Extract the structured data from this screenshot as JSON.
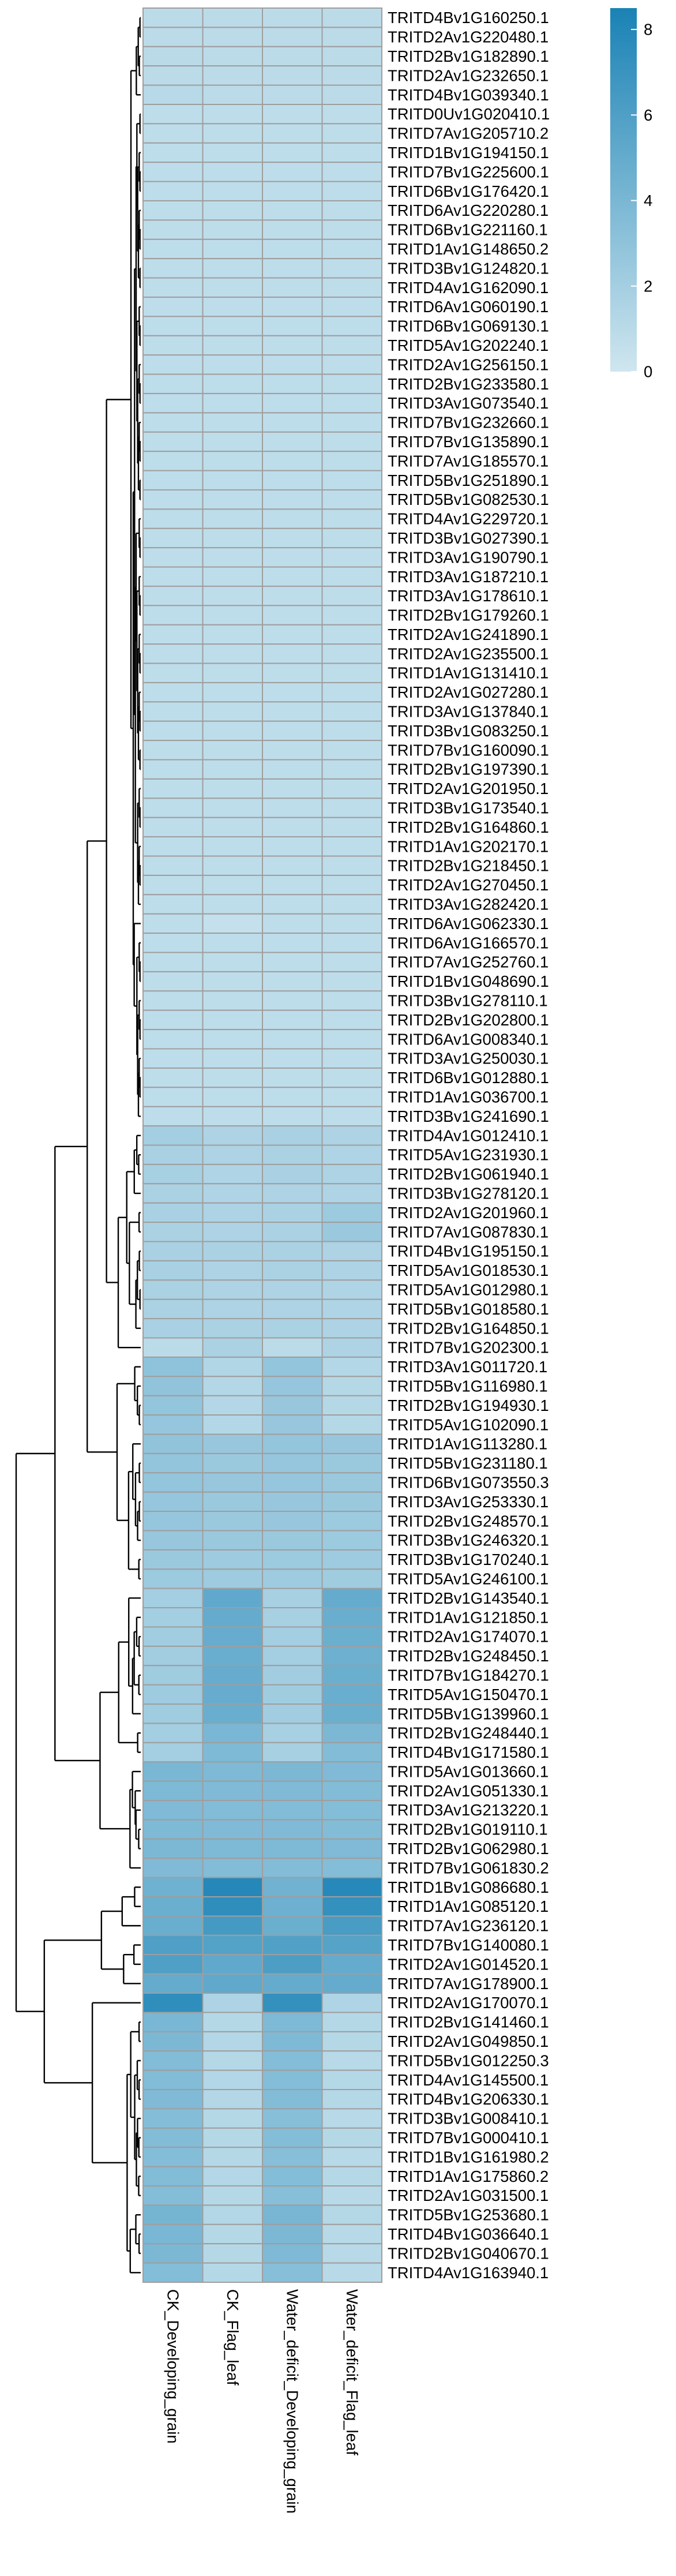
{
  "chart_data": {
    "type": "heatmap",
    "columns": [
      "CK_Developing_grain",
      "CK_Flag_leaf",
      "Water_deficit_Developing_grain",
      "Water_deficit_Flag_leaf"
    ],
    "rows": [
      "TRITD4Bv1G160250.1",
      "TRITD2Av1G220480.1",
      "TRITD2Bv1G182890.1",
      "TRITD2Av1G232650.1",
      "TRITD4Bv1G039340.1",
      "TRITD0Uv1G020410.1",
      "TRITD7Av1G205710.2",
      "TRITD1Bv1G194150.1",
      "TRITD7Bv1G225600.1",
      "TRITD6Bv1G176420.1",
      "TRITD6Av1G220280.1",
      "TRITD6Bv1G221160.1",
      "TRITD1Av1G148650.2",
      "TRITD3Bv1G124820.1",
      "TRITD4Av1G162090.1",
      "TRITD6Av1G060190.1",
      "TRITD6Bv1G069130.1",
      "TRITD5Av1G202240.1",
      "TRITD2Av1G256150.1",
      "TRITD2Bv1G233580.1",
      "TRITD3Av1G073540.1",
      "TRITD7Bv1G232660.1",
      "TRITD7Bv1G135890.1",
      "TRITD7Av1G185570.1",
      "TRITD5Bv1G251890.1",
      "TRITD5Bv1G082530.1",
      "TRITD4Av1G229720.1",
      "TRITD3Bv1G027390.1",
      "TRITD3Av1G190790.1",
      "TRITD3Av1G187210.1",
      "TRITD3Av1G178610.1",
      "TRITD2Bv1G179260.1",
      "TRITD2Av1G241890.1",
      "TRITD2Av1G235500.1",
      "TRITD1Av1G131410.1",
      "TRITD2Av1G027280.1",
      "TRITD3Av1G137840.1",
      "TRITD3Bv1G083250.1",
      "TRITD7Bv1G160090.1",
      "TRITD2Bv1G197390.1",
      "TRITD2Av1G201950.1",
      "TRITD3Bv1G173540.1",
      "TRITD2Bv1G164860.1",
      "TRITD1Av1G202170.1",
      "TRITD2Bv1G218450.1",
      "TRITD2Av1G270450.1",
      "TRITD3Av1G282420.1",
      "TRITD6Av1G062330.1",
      "TRITD6Av1G166570.1",
      "TRITD7Av1G252760.1",
      "TRITD1Bv1G048690.1",
      "TRITD3Bv1G278110.1",
      "TRITD2Bv1G202800.1",
      "TRITD6Av1G008340.1",
      "TRITD3Av1G250030.1",
      "TRITD6Bv1G012880.1",
      "TRITD1Av1G036700.1",
      "TRITD3Bv1G241690.1",
      "TRITD4Av1G012410.1",
      "TRITD5Av1G231930.1",
      "TRITD2Bv1G061940.1",
      "TRITD3Bv1G278120.1",
      "TRITD2Av1G201960.1",
      "TRITD7Av1G087830.1",
      "TRITD4Bv1G195150.1",
      "TRITD5Av1G018530.1",
      "TRITD5Av1G012980.1",
      "TRITD5Bv1G018580.1",
      "TRITD2Bv1G164850.1",
      "TRITD7Bv1G202300.1",
      "TRITD3Av1G011720.1",
      "TRITD5Bv1G116980.1",
      "TRITD2Bv1G194930.1",
      "TRITD5Av1G102090.1",
      "TRITD1Av1G113280.1",
      "TRITD5Bv1G231180.1",
      "TRITD6Bv1G073550.3",
      "TRITD3Av1G253330.1",
      "TRITD2Bv1G248570.1",
      "TRITD3Bv1G246320.1",
      "TRITD3Bv1G170240.1",
      "TRITD5Av1G246100.1",
      "TRITD2Bv1G143540.1",
      "TRITD1Av1G121850.1",
      "TRITD2Av1G174070.1",
      "TRITD2Bv1G248450.1",
      "TRITD7Bv1G184270.1",
      "TRITD5Av1G150470.1",
      "TRITD5Bv1G139960.1",
      "TRITD2Bv1G248440.1",
      "TRITD4Bv1G171580.1",
      "TRITD5Av1G013660.1",
      "TRITD2Av1G051330.1",
      "TRITD3Av1G213220.1",
      "TRITD2Bv1G019110.1",
      "TRITD2Bv1G062980.1",
      "TRITD7Bv1G061830.2",
      "TRITD1Bv1G086680.1",
      "TRITD1Av1G085120.1",
      "TRITD7Av1G236120.1",
      "TRITD7Bv1G140080.1",
      "TRITD2Av1G014520.1",
      "TRITD7Av1G178900.1",
      "TRITD2Av1G170070.1",
      "TRITD2Bv1G141460.1",
      "TRITD2Av1G049850.1",
      "TRITD5Bv1G012250.3",
      "TRITD4Av1G145500.1",
      "TRITD4Bv1G206330.1",
      "TRITD3Bv1G008410.1",
      "TRITD7Bv1G000410.1",
      "TRITD1Bv1G161980.2",
      "TRITD1Av1G175860.2",
      "TRITD2Av1G031500.1",
      "TRITD5Bv1G253680.1",
      "TRITD4Bv1G036640.1",
      "TRITD2Bv1G040670.1",
      "TRITD4Av1G163940.1"
    ],
    "values": [
      [
        0.9,
        0.9,
        0.9,
        0.9
      ],
      [
        0.9,
        0.9,
        0.9,
        0.9
      ],
      [
        1.0,
        0.9,
        0.9,
        0.9
      ],
      [
        0.9,
        0.9,
        0.9,
        0.9
      ],
      [
        1.1,
        0.9,
        0.9,
        0.9
      ],
      [
        0.8,
        0.8,
        0.8,
        0.8
      ],
      [
        0.8,
        0.8,
        0.8,
        0.8
      ],
      [
        0.8,
        0.8,
        0.8,
        0.8
      ],
      [
        0.8,
        0.8,
        0.8,
        0.8
      ],
      [
        0.8,
        0.8,
        0.8,
        0.8
      ],
      [
        0.8,
        0.8,
        0.8,
        0.8
      ],
      [
        0.8,
        0.8,
        0.8,
        0.8
      ],
      [
        0.8,
        0.8,
        0.8,
        0.8
      ],
      [
        0.8,
        0.8,
        0.8,
        0.8
      ],
      [
        0.8,
        0.8,
        0.8,
        0.8
      ],
      [
        0.8,
        0.8,
        0.8,
        0.8
      ],
      [
        0.8,
        0.8,
        0.8,
        0.8
      ],
      [
        0.8,
        0.8,
        0.8,
        0.8
      ],
      [
        0.8,
        0.8,
        0.8,
        0.8
      ],
      [
        0.8,
        0.8,
        0.8,
        0.8
      ],
      [
        0.8,
        0.8,
        0.8,
        0.8
      ],
      [
        0.8,
        0.8,
        0.8,
        0.8
      ],
      [
        0.8,
        0.8,
        0.8,
        0.8
      ],
      [
        0.8,
        0.8,
        0.8,
        0.8
      ],
      [
        0.8,
        0.8,
        0.8,
        0.8
      ],
      [
        0.8,
        0.8,
        0.8,
        0.8
      ],
      [
        0.8,
        0.8,
        0.8,
        0.8
      ],
      [
        0.8,
        0.8,
        0.8,
        0.8
      ],
      [
        0.8,
        0.8,
        0.8,
        0.8
      ],
      [
        0.8,
        0.8,
        0.8,
        0.8
      ],
      [
        0.8,
        0.8,
        0.8,
        0.8
      ],
      [
        0.8,
        0.8,
        0.8,
        0.8
      ],
      [
        0.8,
        0.8,
        0.8,
        0.8
      ],
      [
        0.8,
        0.8,
        0.8,
        0.8
      ],
      [
        0.8,
        0.8,
        0.8,
        0.8
      ],
      [
        0.8,
        0.8,
        0.8,
        0.8
      ],
      [
        0.8,
        0.8,
        0.8,
        0.8
      ],
      [
        0.8,
        0.8,
        0.8,
        0.8
      ],
      [
        0.8,
        0.8,
        0.8,
        0.8
      ],
      [
        0.8,
        0.8,
        0.8,
        0.8
      ],
      [
        0.8,
        0.8,
        0.8,
        0.8
      ],
      [
        0.8,
        0.8,
        0.8,
        0.8
      ],
      [
        0.8,
        0.8,
        0.8,
        0.8
      ],
      [
        0.8,
        0.8,
        0.8,
        0.8
      ],
      [
        0.8,
        0.8,
        0.8,
        0.8
      ],
      [
        0.8,
        0.8,
        0.8,
        0.8
      ],
      [
        0.8,
        0.8,
        0.8,
        0.8
      ],
      [
        0.8,
        0.5,
        0.8,
        0.8
      ],
      [
        0.8,
        0.8,
        0.8,
        0.8
      ],
      [
        0.8,
        0.8,
        0.8,
        0.8
      ],
      [
        0.8,
        0.8,
        0.8,
        0.8
      ],
      [
        0.8,
        0.8,
        0.8,
        0.8
      ],
      [
        0.8,
        0.8,
        0.8,
        0.8
      ],
      [
        0.8,
        0.8,
        0.8,
        0.8
      ],
      [
        0.8,
        0.8,
        0.8,
        0.8
      ],
      [
        0.8,
        0.8,
        0.8,
        0.8
      ],
      [
        0.8,
        0.8,
        0.8,
        0.8
      ],
      [
        0.8,
        0.8,
        0.8,
        0.8
      ],
      [
        2.0,
        1.6,
        1.8,
        1.6
      ],
      [
        1.8,
        1.6,
        1.7,
        1.5
      ],
      [
        1.9,
        1.5,
        1.8,
        1.6
      ],
      [
        1.7,
        1.5,
        1.6,
        1.5
      ],
      [
        1.8,
        1.6,
        1.7,
        2.4
      ],
      [
        1.7,
        1.6,
        1.7,
        2.5
      ],
      [
        1.8,
        1.7,
        1.7,
        1.6
      ],
      [
        1.8,
        1.6,
        1.7,
        1.6
      ],
      [
        1.7,
        1.6,
        1.6,
        1.5
      ],
      [
        1.7,
        1.6,
        1.6,
        1.5
      ],
      [
        1.8,
        1.7,
        1.7,
        1.6
      ],
      [
        0.9,
        1.7,
        0.9,
        1.6
      ],
      [
        3.0,
        1.4,
        2.8,
        1.3
      ],
      [
        2.9,
        1.3,
        2.7,
        1.2
      ],
      [
        2.8,
        1.3,
        2.6,
        1.2
      ],
      [
        2.7,
        1.3,
        2.6,
        1.2
      ],
      [
        2.9,
        2.6,
        2.8,
        2.6
      ],
      [
        2.8,
        2.5,
        2.7,
        2.5
      ],
      [
        2.8,
        2.6,
        2.7,
        2.5
      ],
      [
        2.7,
        2.5,
        2.6,
        2.5
      ],
      [
        2.7,
        2.5,
        2.6,
        2.4
      ],
      [
        2.6,
        2.5,
        2.5,
        2.4
      ],
      [
        2.5,
        2.3,
        2.4,
        2.3
      ],
      [
        2.4,
        2.3,
        2.3,
        2.2
      ],
      [
        2.0,
        5.2,
        1.9,
        5.0
      ],
      [
        2.0,
        5.0,
        1.9,
        4.8
      ],
      [
        2.1,
        4.9,
        2.0,
        4.7
      ],
      [
        2.1,
        4.8,
        2.0,
        4.6
      ],
      [
        2.2,
        4.9,
        2.1,
        4.7
      ],
      [
        2.3,
        4.9,
        2.2,
        4.8
      ],
      [
        2.2,
        4.8,
        2.1,
        4.7
      ],
      [
        2.0,
        4.0,
        1.9,
        3.9
      ],
      [
        2.0,
        3.8,
        1.9,
        3.6
      ],
      [
        4.0,
        3.8,
        3.9,
        3.7
      ],
      [
        3.8,
        3.7,
        3.7,
        3.6
      ],
      [
        3.7,
        3.6,
        3.6,
        3.5
      ],
      [
        3.8,
        3.7,
        3.7,
        3.6
      ],
      [
        3.9,
        3.8,
        3.8,
        3.7
      ],
      [
        3.7,
        3.6,
        3.6,
        3.5
      ],
      [
        4.5,
        8.0,
        4.4,
        7.9
      ],
      [
        4.7,
        7.5,
        4.6,
        7.3
      ],
      [
        4.8,
        6.5,
        4.7,
        6.3
      ],
      [
        6.0,
        5.8,
        5.9,
        5.7
      ],
      [
        6.0,
        5.2,
        6.1,
        5.0
      ],
      [
        5.0,
        5.2,
        5.0,
        5.0
      ],
      [
        7.5,
        1.6,
        7.3,
        1.5
      ],
      [
        4.0,
        1.2,
        3.8,
        1.2
      ],
      [
        3.9,
        1.3,
        3.8,
        1.2
      ],
      [
        3.6,
        1.2,
        3.5,
        1.1
      ],
      [
        3.6,
        1.3,
        3.5,
        1.2
      ],
      [
        3.7,
        1.3,
        3.6,
        1.2
      ],
      [
        3.5,
        1.2,
        3.4,
        1.1
      ],
      [
        3.6,
        1.2,
        3.5,
        1.2
      ],
      [
        3.5,
        1.2,
        3.4,
        1.1
      ],
      [
        3.6,
        1.3,
        3.5,
        1.2
      ],
      [
        3.5,
        1.2,
        3.4,
        1.1
      ],
      [
        4.2,
        1.3,
        4.1,
        1.2
      ],
      [
        4.0,
        1.2,
        3.9,
        1.1
      ],
      [
        3.9,
        1.2,
        3.8,
        1.1
      ],
      [
        3.5,
        1.2,
        3.4,
        1.1
      ]
    ],
    "color_scale": {
      "min": 0,
      "max": 8.5,
      "low_color": "#cfe6ef",
      "high_color": "#1a82b5",
      "ticks": [
        0,
        2,
        4,
        6,
        8
      ]
    },
    "legend_position": "top-right",
    "dendrogram": "rows"
  }
}
